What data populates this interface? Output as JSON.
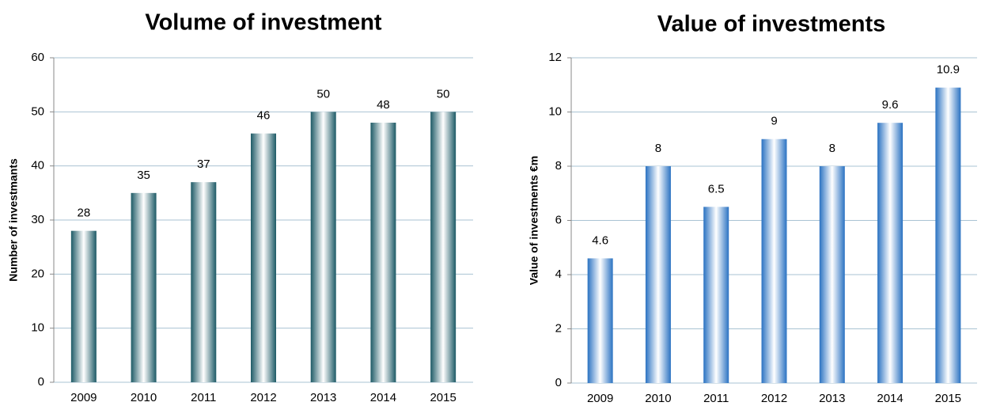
{
  "chart_data": [
    {
      "type": "bar",
      "title": "Volume of investment",
      "y_label": "Number of investmants",
      "categories": [
        "2009",
        "2010",
        "2011",
        "2012",
        "2013",
        "2014",
        "2015"
      ],
      "values": [
        28,
        35,
        37,
        46,
        50,
        48,
        50
      ],
      "color": "#1d5a66",
      "ylim": [
        0,
        60
      ],
      "yticks": [
        0,
        10,
        20,
        30,
        40,
        50,
        60
      ],
      "grid": true
    },
    {
      "type": "bar",
      "title": "Value of investments",
      "y_label": "Value of investments €m",
      "categories": [
        "2009",
        "2010",
        "2011",
        "2012",
        "2013",
        "2014",
        "2015"
      ],
      "values": [
        4.6,
        8,
        6.5,
        9,
        8,
        9.6,
        10.9
      ],
      "color": "#2a72c2",
      "ylim": [
        0,
        12
      ],
      "yticks": [
        0,
        2,
        4,
        6,
        8,
        10,
        12
      ],
      "grid": true
    }
  ]
}
